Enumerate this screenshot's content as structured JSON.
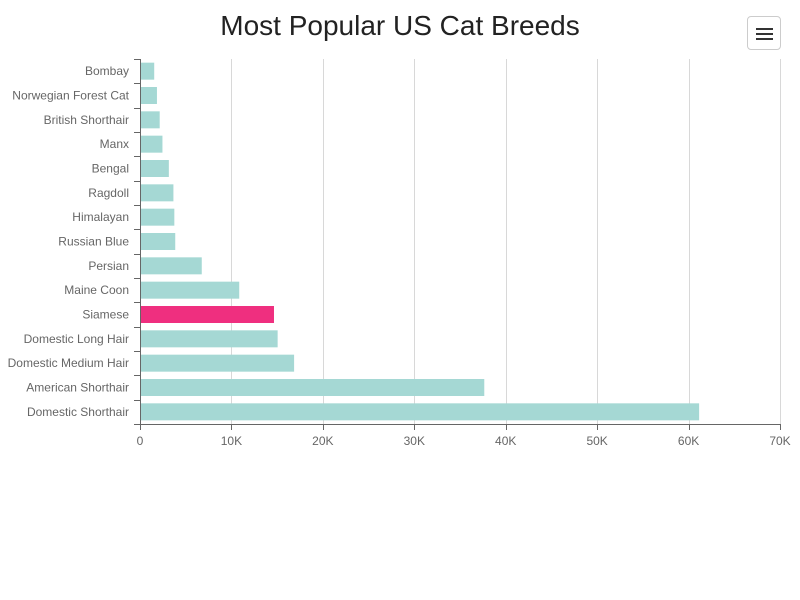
{
  "colors": {
    "bar_default": "#a5d8d4",
    "bar_highlight": "#ef2f7f",
    "grid": "#d8d8d8",
    "axis": "#666666",
    "title": "#222222"
  },
  "menu": {
    "icon": "hamburger-menu-icon"
  },
  "chart_data": {
    "type": "bar",
    "orientation": "horizontal",
    "title": "Most Popular US Cat Breeds",
    "xlabel": "",
    "ylabel": "",
    "xlim": [
      0,
      70000
    ],
    "grid": true,
    "categories": [
      "Bombay",
      "Norwegian Forest Cat",
      "British Shorthair",
      "Manx",
      "Bengal",
      "Ragdoll",
      "Himalayan",
      "Russian Blue",
      "Persian",
      "Maine Coon",
      "Siamese",
      "Domestic Long Hair",
      "Domestic Medium Hair",
      "American Shorthair",
      "Domestic Shorthair"
    ],
    "values": [
      1500,
      1800,
      2100,
      2400,
      3100,
      3600,
      3700,
      3800,
      6700,
      10800,
      14600,
      15000,
      16800,
      37600,
      61100
    ],
    "highlighted_category": "Siamese",
    "x_ticks": [
      0,
      10000,
      20000,
      30000,
      40000,
      50000,
      60000,
      70000
    ],
    "x_tick_labels": [
      "0",
      "10K",
      "20K",
      "30K",
      "40K",
      "50K",
      "60K",
      "70K"
    ]
  }
}
